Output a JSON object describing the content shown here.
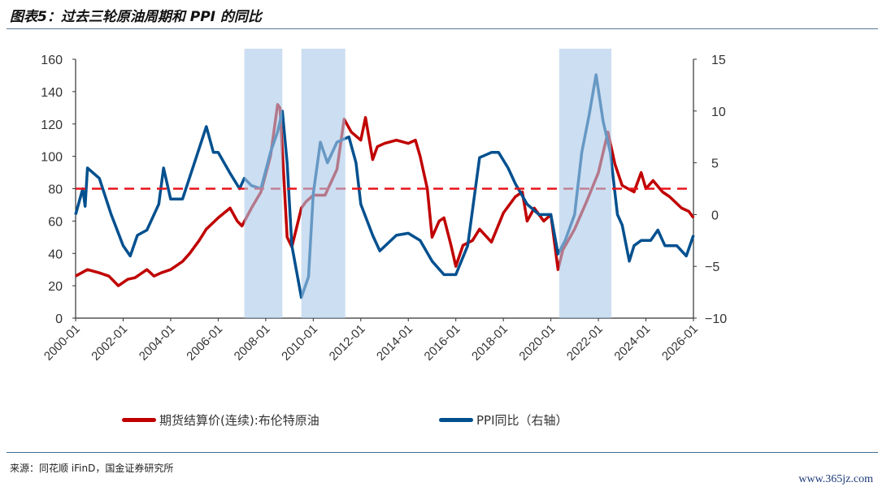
{
  "title": "图表5：过去三轮原油周期和 PPI 的同比",
  "source": "来源：同花顺 iFinD，国金证券研究所",
  "watermark": "www.365jz.com",
  "chart_data": {
    "type": "line",
    "title": "图表5：过去三轮原油周期和 PPI 的同比",
    "x_ticks": [
      "2000-01",
      "2002-01",
      "2004-01",
      "2006-01",
      "2008-01",
      "2010-01",
      "2012-01",
      "2014-01",
      "2016-01",
      "2018-01",
      "2020-01",
      "2022-01",
      "2024-01",
      "2026-01"
    ],
    "xlim": [
      2000,
      2026
    ],
    "left_axis": {
      "ylim": [
        0,
        160
      ],
      "ticks": [
        0,
        20,
        40,
        60,
        80,
        100,
        120,
        140,
        160
      ]
    },
    "right_axis": {
      "ylim": [
        -10,
        15
      ],
      "ticks": [
        -10,
        -5,
        0,
        5,
        10,
        15
      ]
    },
    "reference_line": {
      "axis": "left",
      "value": 80,
      "style": "dashed",
      "color": "#e8141b"
    },
    "shaded_periods": [
      [
        2007.1,
        2008.7
      ],
      [
        2009.5,
        2011.35
      ],
      [
        2020.35,
        2022.55
      ]
    ],
    "series": [
      {
        "name": "期货结算价(连续):布伦特原油",
        "axis": "left",
        "color": "#c00000",
        "x": [
          2000.0,
          2000.5,
          2001.0,
          2001.4,
          2001.8,
          2002.2,
          2002.5,
          2003.0,
          2003.3,
          2003.6,
          2004.0,
          2004.5,
          2004.8,
          2005.2,
          2005.5,
          2006.0,
          2006.5,
          2006.8,
          2007.0,
          2007.4,
          2007.8,
          2008.2,
          2008.5,
          2008.6,
          2008.9,
          2009.1,
          2009.5,
          2009.7,
          2010.0,
          2010.5,
          2011.0,
          2011.3,
          2011.6,
          2012.0,
          2012.2,
          2012.5,
          2012.7,
          2013.0,
          2013.5,
          2014.0,
          2014.3,
          2014.5,
          2014.8,
          2015.0,
          2015.3,
          2015.5,
          2015.8,
          2016.0,
          2016.3,
          2016.7,
          2017.0,
          2017.5,
          2018.0,
          2018.5,
          2018.8,
          2019.0,
          2019.3,
          2019.7,
          2020.0,
          2020.3,
          2020.5,
          2021.0,
          2021.5,
          2022.0,
          2022.4,
          2022.7,
          2023.0,
          2023.5,
          2023.8,
          2024.0,
          2024.3,
          2024.7,
          2025.0,
          2025.5,
          2025.8,
          2026.0
        ],
        "values": [
          26,
          30,
          28,
          26,
          20,
          24,
          25,
          30,
          26,
          28,
          30,
          35,
          40,
          48,
          55,
          62,
          68,
          60,
          57,
          68,
          78,
          100,
          132,
          130,
          50,
          44,
          68,
          72,
          76,
          76,
          92,
          123,
          115,
          110,
          124,
          98,
          106,
          108,
          110,
          108,
          110,
          100,
          80,
          50,
          60,
          62,
          45,
          32,
          45,
          48,
          55,
          47,
          65,
          75,
          78,
          60,
          68,
          60,
          64,
          30,
          42,
          55,
          72,
          90,
          115,
          95,
          82,
          78,
          90,
          80,
          85,
          78,
          75,
          68,
          66,
          62
        ]
      },
      {
        "name": "PPI同比（右轴）",
        "axis": "right",
        "color": "#00508f",
        "x": [
          2000.0,
          2000.3,
          2000.4,
          2000.5,
          2001.0,
          2001.5,
          2002.0,
          2002.3,
          2002.6,
          2003.0,
          2003.5,
          2003.7,
          2004.0,
          2004.5,
          2005.0,
          2005.5,
          2005.8,
          2006.0,
          2006.5,
          2006.9,
          2007.1,
          2007.4,
          2007.8,
          2008.2,
          2008.5,
          2008.7,
          2008.9,
          2009.1,
          2009.5,
          2009.8,
          2010.0,
          2010.3,
          2010.6,
          2011.0,
          2011.5,
          2011.8,
          2012.0,
          2012.5,
          2012.8,
          2013.5,
          2014.0,
          2014.5,
          2015.0,
          2015.5,
          2016.0,
          2016.5,
          2017.0,
          2017.5,
          2017.8,
          2018.2,
          2018.5,
          2019.0,
          2019.5,
          2020.0,
          2020.3,
          2020.6,
          2021.0,
          2021.3,
          2021.6,
          2021.9,
          2022.2,
          2022.5,
          2022.8,
          2023.0,
          2023.3,
          2023.5,
          2023.8,
          2024.2,
          2024.5,
          2024.8,
          2025.3,
          2025.7,
          2026.0
        ],
        "values": [
          0,
          2.5,
          0.8,
          4.5,
          3.5,
          0,
          -3,
          -4,
          -2,
          -1.5,
          1,
          4.5,
          1.5,
          1.5,
          5,
          8.5,
          6,
          6,
          4,
          2.5,
          3.5,
          2.8,
          2.5,
          6,
          8,
          10,
          5,
          -3,
          -8,
          -6,
          2,
          7,
          5,
          7,
          7.5,
          5,
          1,
          -2,
          -3.5,
          -2,
          -1.8,
          -2.5,
          -4.5,
          -5.8,
          -5.8,
          -3,
          5.5,
          6,
          6,
          4.5,
          3,
          1,
          0,
          0,
          -3.8,
          -2.5,
          0,
          6,
          9.5,
          13.5,
          9,
          6,
          0,
          -1,
          -4.5,
          -3,
          -2.5,
          -2.5,
          -1.5,
          -3,
          -3,
          -4,
          -2
        ]
      }
    ],
    "legend": {
      "placement": "bottom",
      "entries": [
        "期货结算价(连续):布伦特原油",
        "PPI同比（右轴）"
      ]
    }
  }
}
